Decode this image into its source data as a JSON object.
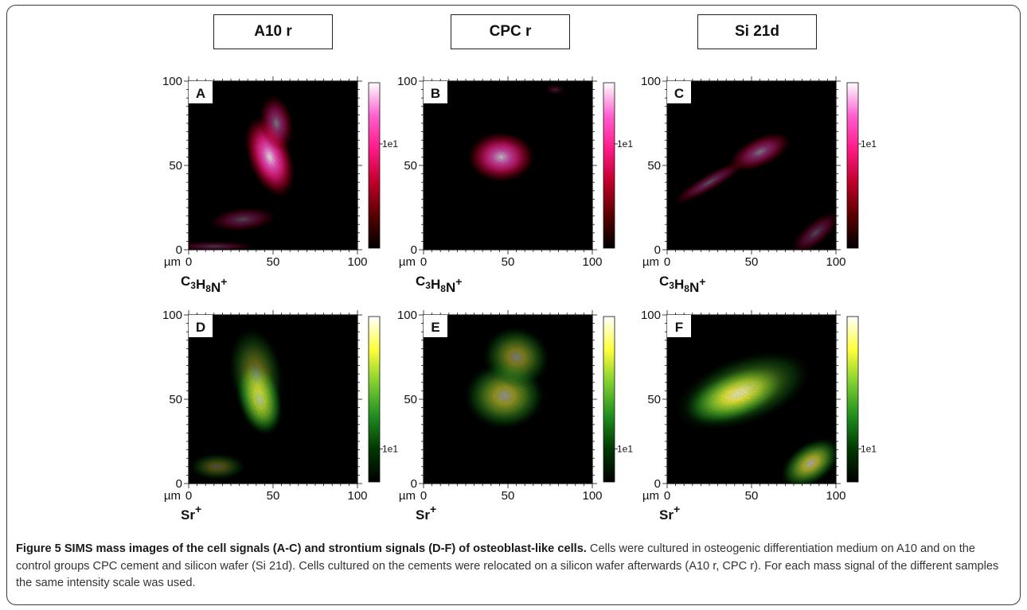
{
  "columns": [
    "A10 r",
    "CPC r",
    "Si 21d"
  ],
  "panels": [
    {
      "letter": "A",
      "species": "C3H8N+",
      "palette": "magenta",
      "colorbar_label": "1e1",
      "colorbar_frac": 0.63,
      "x_ticks": [
        "0",
        "50",
        "100"
      ],
      "y_ticks": [
        "0",
        "50",
        "100"
      ],
      "unit": "µm"
    },
    {
      "letter": "B",
      "species": "C3H8N+",
      "palette": "magenta",
      "colorbar_label": "1e1",
      "colorbar_frac": 0.63,
      "x_ticks": [
        "0",
        "50",
        "100"
      ],
      "y_ticks": [
        "0",
        "50",
        "100"
      ],
      "unit": "µm"
    },
    {
      "letter": "C",
      "species": "C3H8N+",
      "palette": "magenta",
      "colorbar_label": "1e1",
      "colorbar_frac": 0.63,
      "x_ticks": [
        "0",
        "50",
        "100"
      ],
      "y_ticks": [
        "0",
        "50",
        "100"
      ],
      "unit": "µm"
    },
    {
      "letter": "D",
      "species": "Sr+",
      "palette": "yellow",
      "colorbar_label": "1e1",
      "colorbar_frac": 0.2,
      "x_ticks": [
        "0",
        "50",
        "100"
      ],
      "y_ticks": [
        "0",
        "50",
        "100"
      ],
      "unit": "µm"
    },
    {
      "letter": "E",
      "species": "Sr+",
      "palette": "yellow",
      "colorbar_label": "1e1",
      "colorbar_frac": 0.2,
      "x_ticks": [
        "0",
        "50",
        "100"
      ],
      "y_ticks": [
        "0",
        "50",
        "100"
      ],
      "unit": "µm"
    },
    {
      "letter": "F",
      "species": "Sr+",
      "palette": "yellow",
      "colorbar_label": "1e1",
      "colorbar_frac": 0.2,
      "x_ticks": [
        "0",
        "50",
        "100"
      ],
      "y_ticks": [
        "0",
        "50",
        "100"
      ],
      "unit": "µm"
    }
  ],
  "caption": {
    "title": "Figure 5 SIMS mass images of the cell signals (A-C) and strontium signals (D-F) of osteoblast-like cells.",
    "body": " Cells were cultured in osteogenic differentiation medium on A10 and on the control groups CPC cement and silicon wafer (Si 21d). Cells cultured on the cements were relocated on a silicon wafer afterwards (A10 r, CPC r). For each mass signal of the different samples the same intensity scale was used."
  },
  "colors": {
    "magenta_scale": [
      "#000000",
      "#5a0000",
      "#c0002a",
      "#ff1a86",
      "#ff5fd0",
      "#ffffff"
    ],
    "yellow_scale": [
      "#000000",
      "#003800",
      "#1f8f1f",
      "#7fcf2f",
      "#ffff3a",
      "#ffffff"
    ]
  }
}
